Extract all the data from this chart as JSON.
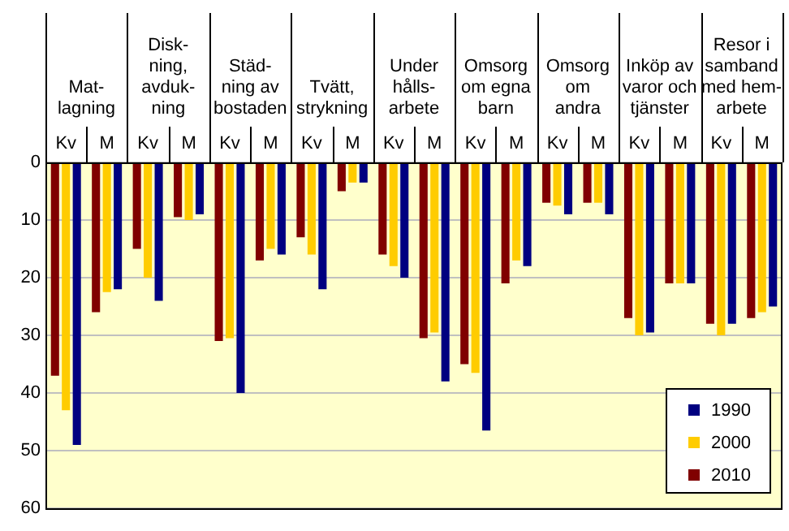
{
  "chart_data": {
    "type": "bar",
    "categories": [
      "Kv",
      "M",
      "Kv",
      "M",
      "Kv",
      "M",
      "Kv",
      "M",
      "Kv",
      "M",
      "Kv",
      "M",
      "Kv",
      "M",
      "Kv",
      "M",
      "Kv",
      "M"
    ],
    "annotations": [
      "Mat-\nlagning",
      "Disk-\nning,\navduk-\nning",
      "Städ-\nning av\nbostaden",
      "Tvätt,\nstrykning",
      "Under\nhålls-\narbete",
      "Omsorg\nom egna\nbarn",
      "Omsorg\nom\nandra",
      "Inköp av\nvaror och\ntjänster",
      "Resor i\nsamband\nmed hem-\narbete"
    ],
    "series": [
      {
        "name": "2010",
        "color": "#800000",
        "values": [
          37,
          26,
          15,
          9.5,
          31,
          17,
          13,
          5,
          16,
          30.5,
          35,
          21,
          7,
          7,
          27,
          21,
          28,
          27
        ]
      },
      {
        "name": "2000",
        "color": "#ffcc00",
        "values": [
          43,
          22.5,
          20,
          10,
          30.5,
          15,
          16,
          3.5,
          18,
          29.5,
          36.5,
          17,
          7.5,
          7,
          30,
          21,
          30,
          26
        ]
      },
      {
        "name": "1990",
        "color": "#000080",
        "values": [
          49,
          22,
          24,
          9,
          40,
          16,
          22,
          3.5,
          20,
          38,
          46.5,
          18,
          9,
          9,
          29.5,
          21,
          28,
          25
        ]
      }
    ],
    "ylim": [
      60,
      0
    ],
    "yticks": [
      0,
      10,
      20,
      30,
      40,
      50,
      60
    ],
    "grid": "y",
    "legend": "bottom right"
  }
}
